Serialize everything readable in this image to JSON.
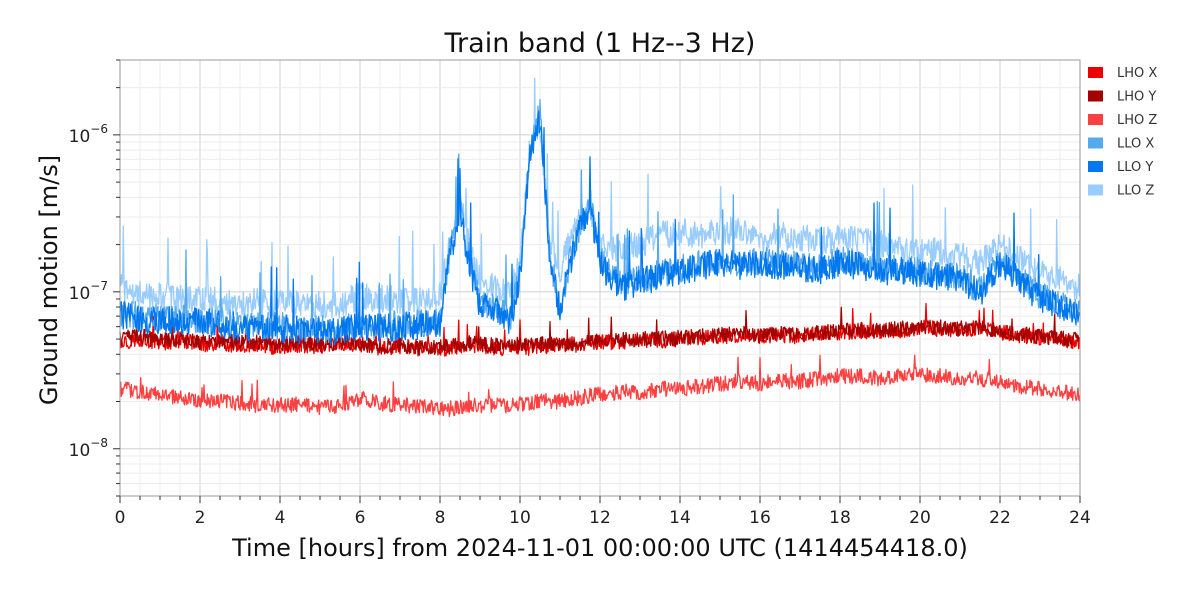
{
  "chart_data": {
    "type": "line",
    "title": "Train band (1 Hz--3 Hz)",
    "xlabel": "Time [hours] from 2024-11-01 00:00:00 UTC (1414454418.0)",
    "ylabel": "Ground motion [m/s]",
    "x_scale": "linear",
    "y_scale": "log",
    "xlim": [
      0,
      24
    ],
    "ylim": [
      5e-09,
      3e-06
    ],
    "x_ticks": [
      "0",
      "2",
      "4",
      "6",
      "8",
      "10",
      "12",
      "14",
      "16",
      "18",
      "20",
      "22",
      "24"
    ],
    "y_ticks": [
      {
        "value": 1e-08,
        "base": "10",
        "exp": "−8"
      },
      {
        "value": 1e-07,
        "base": "10",
        "exp": "−7"
      },
      {
        "value": 1e-06,
        "base": "10",
        "exp": "−6"
      }
    ],
    "grid": true,
    "legend_position": "right",
    "x": [
      0,
      0.5,
      1,
      1.5,
      2,
      2.5,
      3,
      3.5,
      4,
      4.5,
      5,
      5.5,
      6,
      6.5,
      7,
      7.5,
      8,
      8.25,
      8.5,
      8.75,
      9,
      9.5,
      9.75,
      10,
      10.25,
      10.5,
      10.75,
      11,
      11.25,
      11.5,
      11.75,
      12,
      12.5,
      13,
      13.5,
      14,
      14.5,
      15,
      15.5,
      16,
      16.5,
      17,
      17.5,
      18,
      18.5,
      19,
      19.5,
      20,
      20.5,
      21,
      21.5,
      22,
      22.5,
      23,
      23.5,
      24
    ],
    "series": [
      {
        "name": "LHO X",
        "color": "#ee0000",
        "values": [
          4.8e-08,
          5e-08,
          4.7e-08,
          4.9e-08,
          4.6e-08,
          4.7e-08,
          4.5e-08,
          4.6e-08,
          4.4e-08,
          4.6e-08,
          4.5e-08,
          4.7e-08,
          4.6e-08,
          4.4e-08,
          4.5e-08,
          4.3e-08,
          4.3e-08,
          4.4e-08,
          4.5e-08,
          4.6e-08,
          4.5e-08,
          4.4e-08,
          4.4e-08,
          4.5e-08,
          4.4e-08,
          4.6e-08,
          4.5e-08,
          4.6e-08,
          4.6e-08,
          4.6e-08,
          4.7e-08,
          4.8e-08,
          4.8e-08,
          4.9e-08,
          4.9e-08,
          5e-08,
          5.1e-08,
          5.2e-08,
          5.3e-08,
          5.2e-08,
          5.3e-08,
          5.2e-08,
          5.4e-08,
          5.5e-08,
          5.6e-08,
          5.6e-08,
          5.7e-08,
          5.9e-08,
          5.8e-08,
          5.7e-08,
          5.9e-08,
          5.5e-08,
          5.3e-08,
          5.1e-08,
          5e-08,
          4.8e-08
        ]
      },
      {
        "name": "LHO Y",
        "color": "#a30000",
        "values": [
          5e-08,
          5.2e-08,
          4.9e-08,
          5.1e-08,
          4.8e-08,
          4.9e-08,
          4.7e-08,
          4.8e-08,
          4.6e-08,
          4.8e-08,
          4.6e-08,
          4.8e-08,
          4.7e-08,
          4.5e-08,
          4.6e-08,
          4.4e-08,
          4.4e-08,
          4.5e-08,
          4.6e-08,
          4.7e-08,
          4.6e-08,
          4.5e-08,
          4.5e-08,
          4.6e-08,
          4.5e-08,
          4.7e-08,
          4.6e-08,
          4.7e-08,
          4.7e-08,
          4.7e-08,
          4.8e-08,
          4.9e-08,
          4.9e-08,
          5e-08,
          5e-08,
          5.1e-08,
          5.2e-08,
          5.3e-08,
          5.4e-08,
          5.3e-08,
          5.4e-08,
          5.3e-08,
          5.5e-08,
          5.6e-08,
          5.7e-08,
          5.7e-08,
          5.8e-08,
          6e-08,
          5.9e-08,
          5.8e-08,
          6e-08,
          5.6e-08,
          5.4e-08,
          5.2e-08,
          5.1e-08,
          4.9e-08
        ]
      },
      {
        "name": "LHO Z",
        "color": "#ff4040",
        "values": [
          2.4e-08,
          2.3e-08,
          2.2e-08,
          2.1e-08,
          2e-08,
          2e-08,
          1.95e-08,
          1.9e-08,
          1.9e-08,
          1.9e-08,
          1.85e-08,
          1.85e-08,
          2.1e-08,
          1.95e-08,
          1.9e-08,
          1.85e-08,
          1.8e-08,
          1.8e-08,
          1.85e-08,
          1.9e-08,
          1.9e-08,
          1.9e-08,
          1.9e-08,
          1.95e-08,
          1.95e-08,
          2e-08,
          2e-08,
          2e-08,
          2.1e-08,
          2.1e-08,
          2.2e-08,
          2.2e-08,
          2.3e-08,
          2.3e-08,
          2.4e-08,
          2.4e-08,
          2.5e-08,
          2.6e-08,
          2.7e-08,
          2.6e-08,
          2.7e-08,
          2.7e-08,
          2.8e-08,
          2.9e-08,
          2.9e-08,
          2.8e-08,
          2.9e-08,
          3e-08,
          2.9e-08,
          2.8e-08,
          2.8e-08,
          2.7e-08,
          2.5e-08,
          2.4e-08,
          2.3e-08,
          2.2e-08
        ]
      },
      {
        "name": "LLO X",
        "color": "#55aaee",
        "values": [
          7.5e-08,
          7e-08,
          6.8e-08,
          6.8e-08,
          6.6e-08,
          6.5e-08,
          6.2e-08,
          6e-08,
          6e-08,
          5.9e-08,
          5.8e-08,
          5.8e-08,
          6.2e-08,
          6.1e-08,
          6.2e-08,
          6.3e-08,
          6.6e-08,
          1.8e-07,
          3.5e-07,
          1.5e-07,
          8.5e-08,
          7.8e-08,
          6.6e-08,
          1.3e-07,
          8e-07,
          1.4e-06,
          1.7e-07,
          7.8e-08,
          1.6e-07,
          2.6e-07,
          3.8e-07,
          1.6e-07,
          1.1e-07,
          1.2e-07,
          1.3e-07,
          1.4e-07,
          1.5e-07,
          1.6e-07,
          1.5e-07,
          1.6e-07,
          1.5e-07,
          1.5e-07,
          1.4e-07,
          1.6e-07,
          1.5e-07,
          1.4e-07,
          1.4e-07,
          1.35e-07,
          1.3e-07,
          1.3e-07,
          1e-07,
          1.6e-07,
          1.2e-07,
          9.5e-08,
          8.5e-08,
          7.6e-08
        ]
      },
      {
        "name": "LLO Y",
        "color": "#0077ee",
        "values": [
          7.2e-08,
          6.7e-08,
          6.5e-08,
          6.6e-08,
          6.4e-08,
          6.3e-08,
          6e-08,
          5.8e-08,
          5.8e-08,
          5.7e-08,
          5.6e-08,
          5.6e-08,
          6e-08,
          5.9e-08,
          6e-08,
          6.1e-08,
          6.4e-08,
          1.7e-07,
          3.3e-07,
          1.4e-07,
          8.2e-08,
          7.5e-08,
          6.4e-08,
          1.25e-07,
          7.6e-07,
          1.3e-06,
          1.6e-07,
          7.5e-08,
          1.5e-07,
          2.5e-07,
          3.6e-07,
          1.5e-07,
          1.05e-07,
          1.15e-07,
          1.25e-07,
          1.35e-07,
          1.45e-07,
          1.55e-07,
          1.45e-07,
          1.55e-07,
          1.45e-07,
          1.45e-07,
          1.35e-07,
          1.55e-07,
          1.45e-07,
          1.35e-07,
          1.35e-07,
          1.3e-07,
          1.25e-07,
          1.25e-07,
          9.6e-08,
          1.55e-07,
          1.15e-07,
          9.1e-08,
          8.2e-08,
          7.3e-08
        ]
      },
      {
        "name": "LLO Z",
        "color": "#99ccff",
        "values": [
          1.1e-07,
          9.5e-08,
          9.4e-08,
          9e-08,
          8.8e-08,
          8.8e-08,
          8.6e-08,
          8.5e-08,
          8.5e-08,
          8.4e-08,
          8.2e-08,
          8.2e-08,
          9.5e-08,
          9e-08,
          8.8e-08,
          9e-08,
          9.5e-08,
          2e-07,
          3.8e-07,
          1.8e-07,
          1.2e-07,
          1e-07,
          9.5e-08,
          1.5e-07,
          8.5e-07,
          1.1e-06,
          2e-07,
          1.3e-07,
          2.2e-07,
          3e-07,
          3.5e-07,
          2e-07,
          1.9e-07,
          2e-07,
          2.3e-07,
          2.4e-07,
          2.3e-07,
          2.5e-07,
          2.4e-07,
          2.2e-07,
          2.3e-07,
          2.2e-07,
          2.1e-07,
          2.2e-07,
          2.1e-07,
          2e-07,
          1.9e-07,
          1.8e-07,
          1.8e-07,
          1.7e-07,
          1.5e-07,
          2e-07,
          1.6e-07,
          1.3e-07,
          1.2e-07,
          1.05e-07
        ]
      }
    ]
  }
}
